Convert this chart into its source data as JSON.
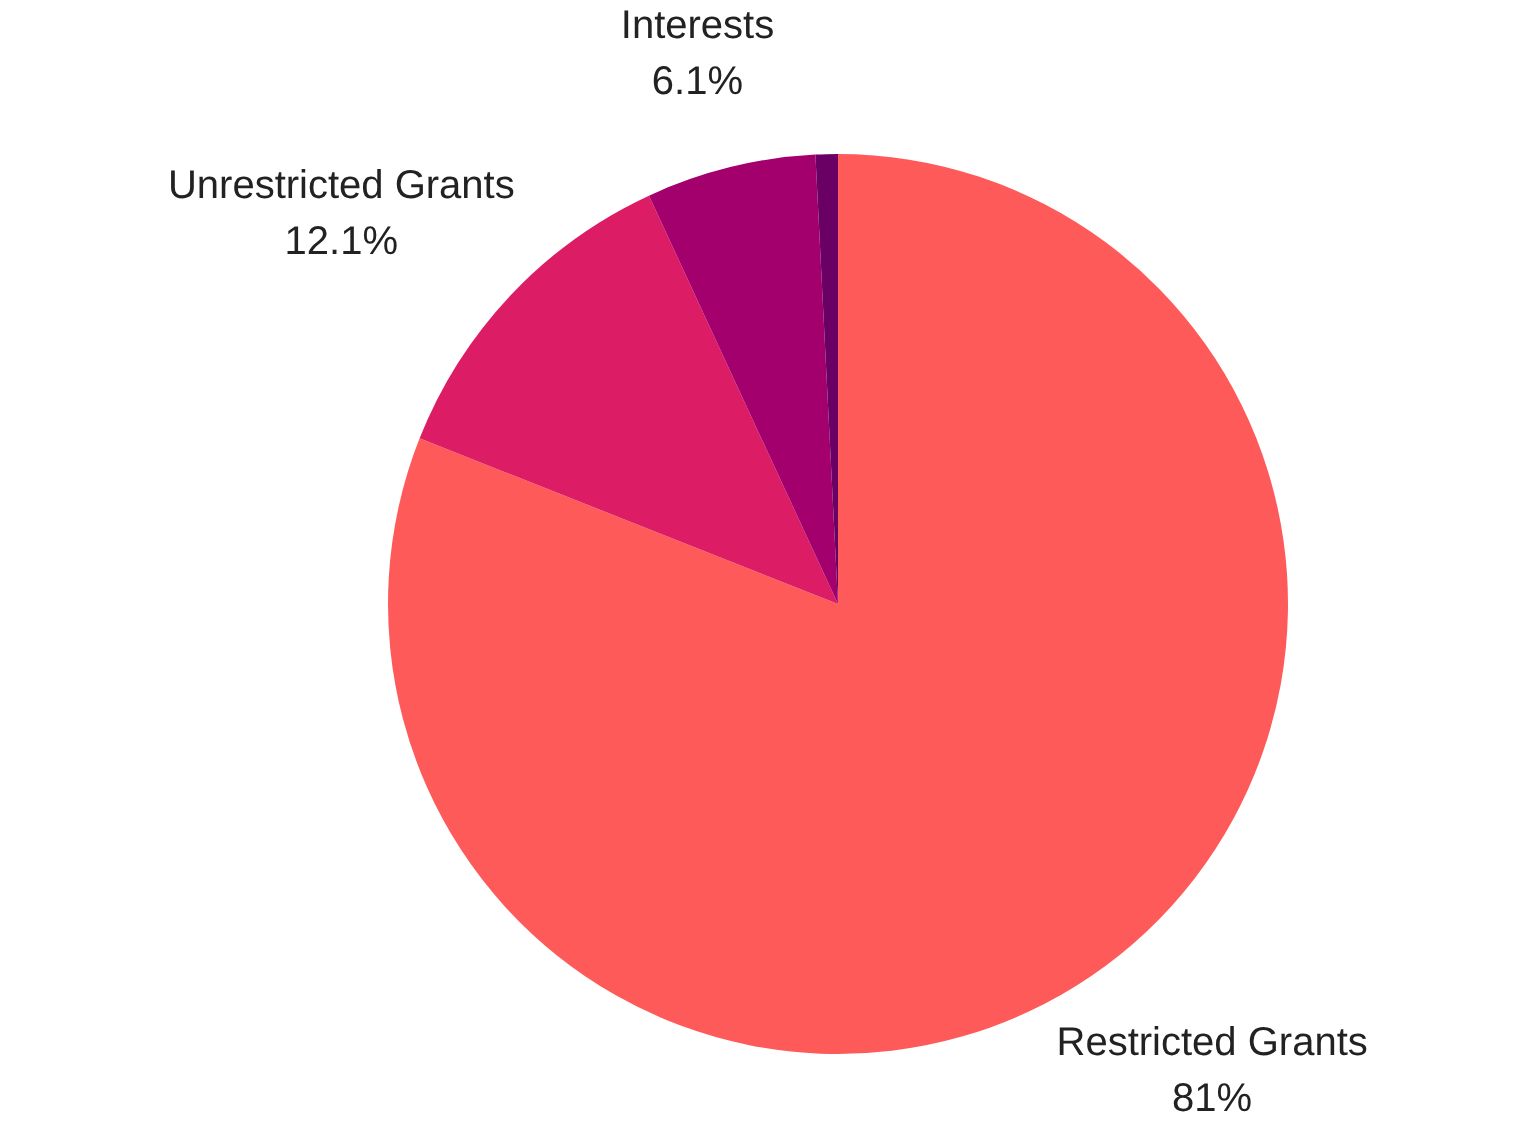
{
  "chart_data": {
    "type": "pie",
    "categories": [
      "Restricted Grants",
      "Unrestricted Grants",
      "Interests",
      null
    ],
    "values": [
      81,
      12.1,
      6.1,
      0.8
    ],
    "value_labels": [
      "81%",
      "12.1%",
      "6.1%",
      null
    ],
    "colors": [
      "#ff5a5a",
      "#dc1c64",
      "#a3006e",
      "#6a0063"
    ],
    "legend": false
  }
}
